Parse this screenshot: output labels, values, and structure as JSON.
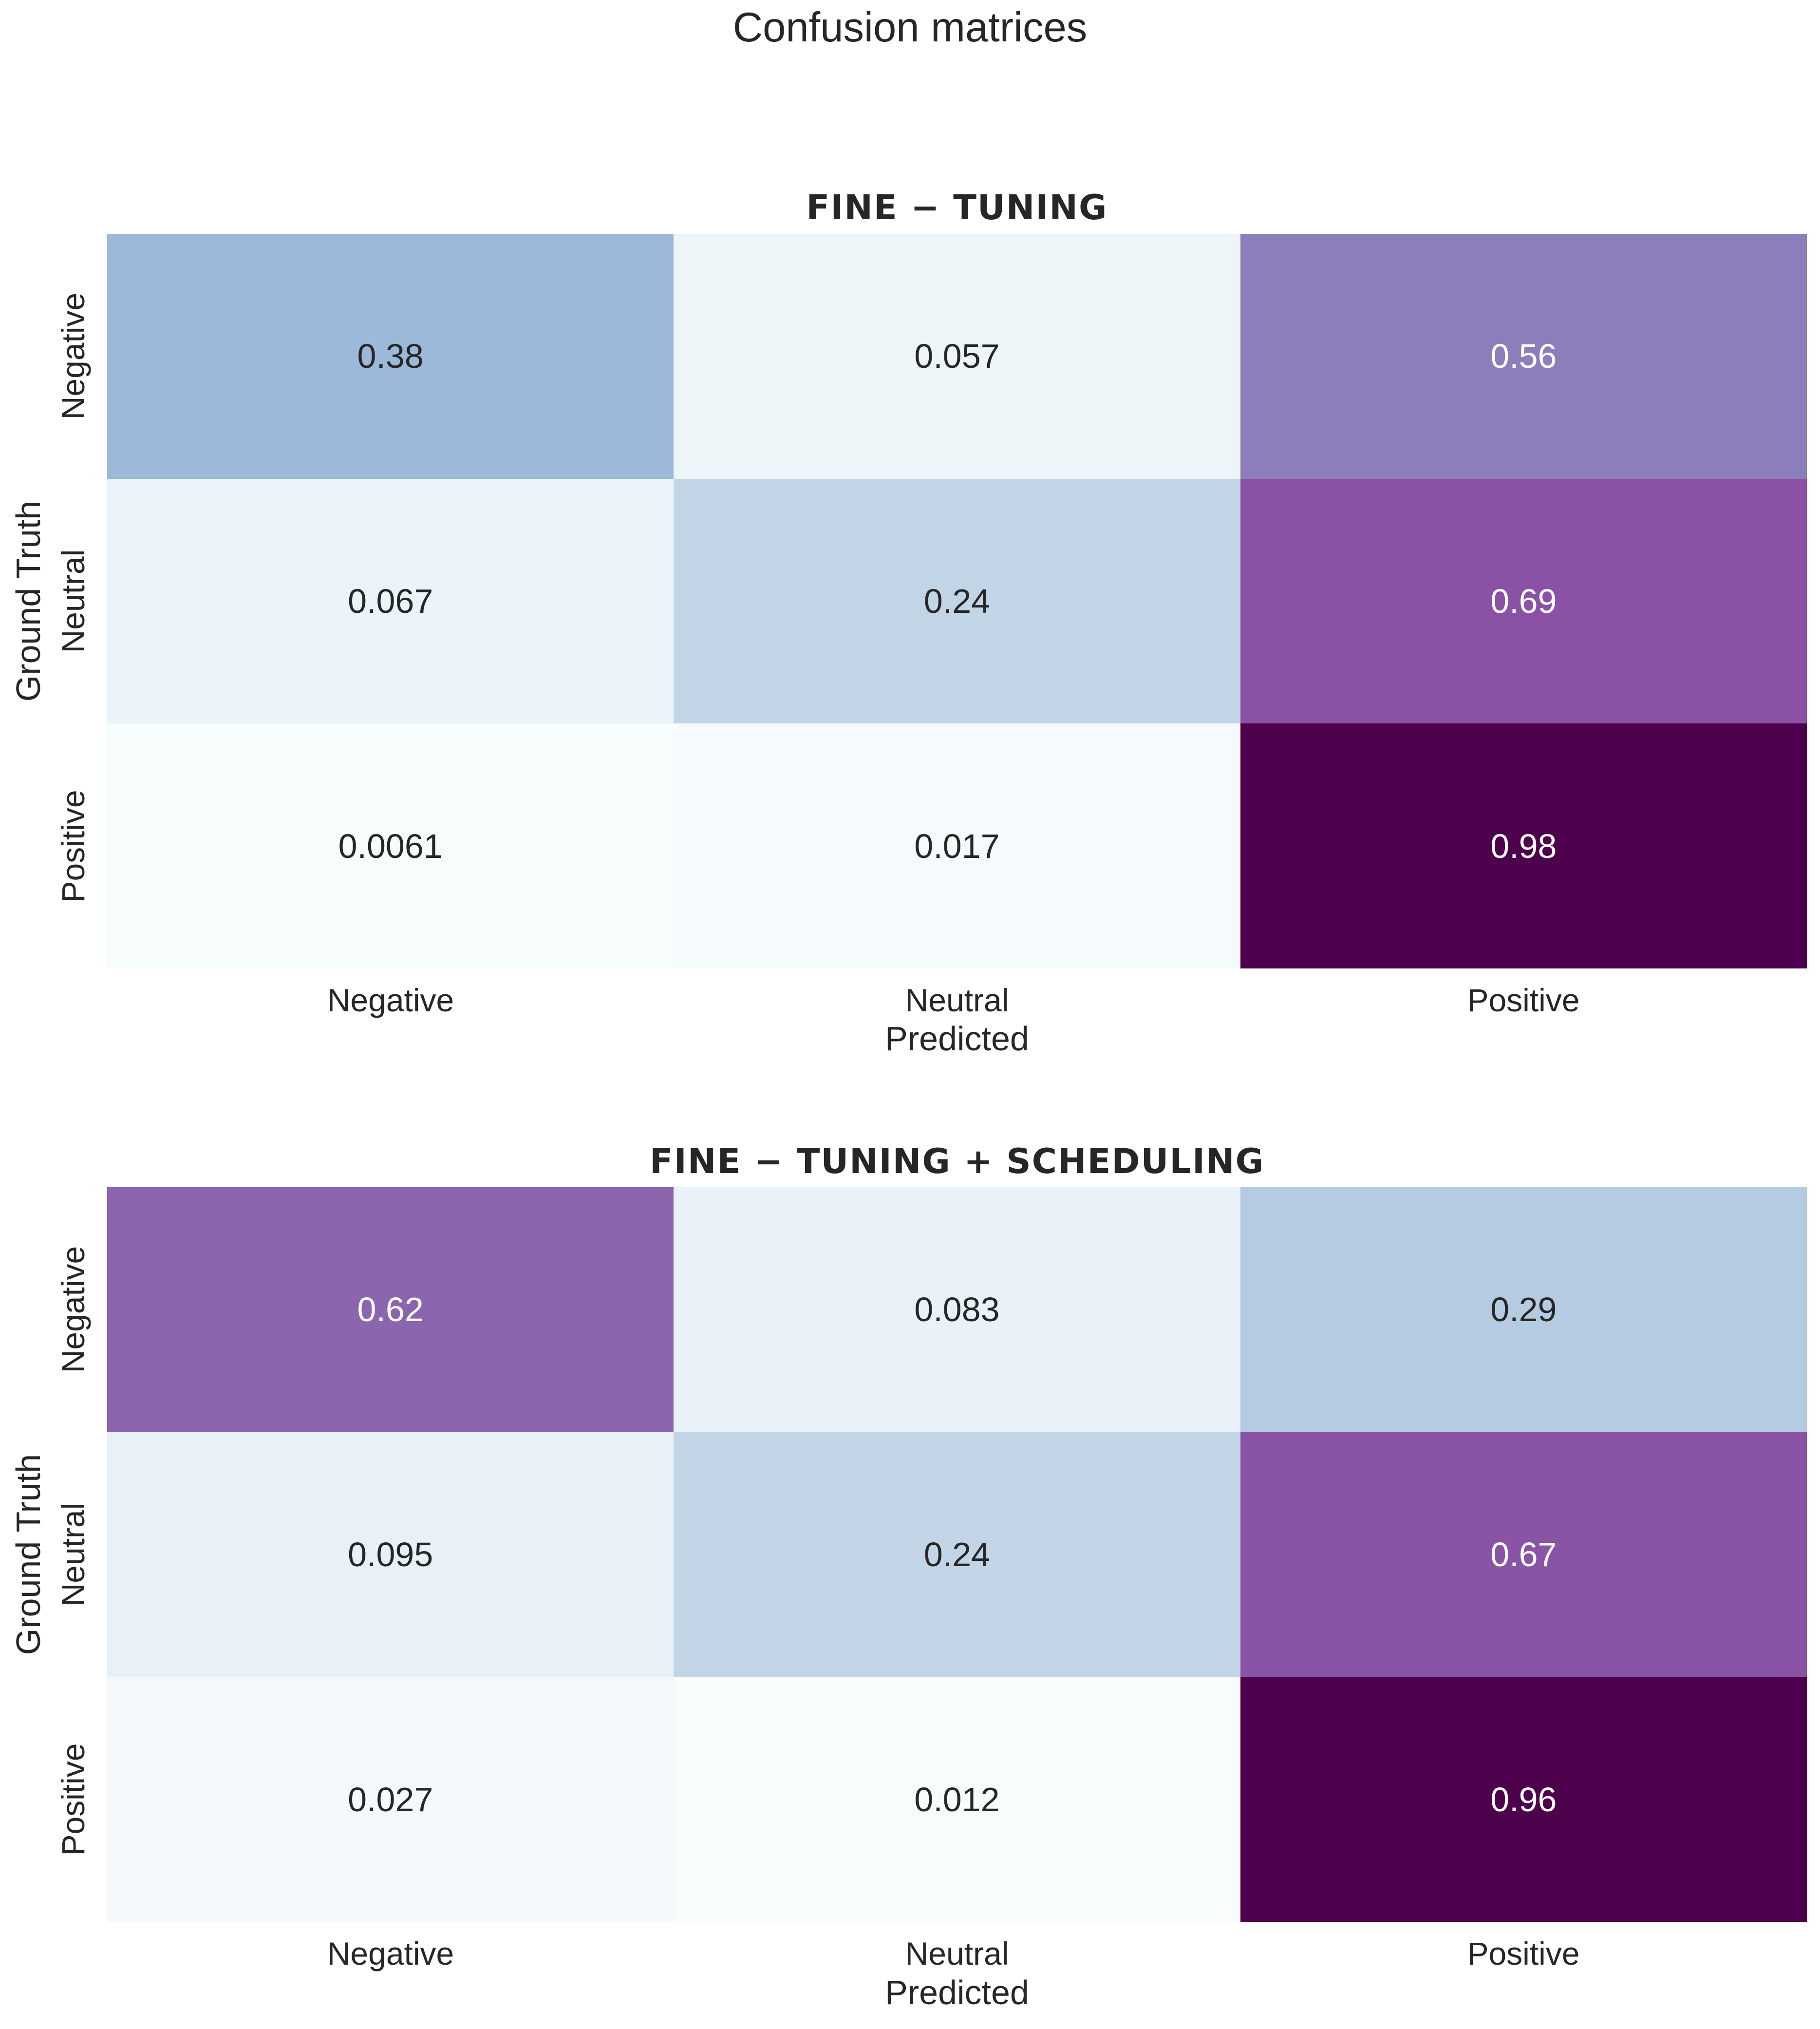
{
  "title": "Confusion matrices",
  "chart_data": [
    {
      "type": "heatmap",
      "title": "FINE − TUNING",
      "xlabel": "Predicted",
      "ylabel": "Ground Truth",
      "x_categories": [
        "Negative",
        "Neutral",
        "Positive"
      ],
      "y_categories": [
        "Negative",
        "Neutral",
        "Positive"
      ],
      "labels": [
        [
          "0.38",
          "0.057",
          "0.56"
        ],
        [
          "0.067",
          "0.24",
          "0.69"
        ],
        [
          "0.0061",
          "0.017",
          "0.98"
        ]
      ],
      "values": [
        [
          0.38,
          0.057,
          0.56
        ],
        [
          0.067,
          0.24,
          0.69
        ],
        [
          0.0061,
          0.017,
          0.98
        ]
      ],
      "colormap": "BuPu",
      "grid": false
    },
    {
      "type": "heatmap",
      "title": "FINE − TUNING + SCHEDULING",
      "xlabel": "Predicted",
      "ylabel": "Ground Truth",
      "x_categories": [
        "Negative",
        "Neutral",
        "Positive"
      ],
      "y_categories": [
        "Negative",
        "Neutral",
        "Positive"
      ],
      "labels": [
        [
          "0.62",
          "0.083",
          "0.29"
        ],
        [
          "0.095",
          "0.24",
          "0.67"
        ],
        [
          "0.027",
          "0.012",
          "0.96"
        ]
      ],
      "values": [
        [
          0.62,
          0.083,
          0.29
        ],
        [
          0.095,
          0.24,
          0.67
        ],
        [
          0.027,
          0.012,
          0.96
        ]
      ],
      "colormap": "BuPu",
      "grid": false
    }
  ]
}
